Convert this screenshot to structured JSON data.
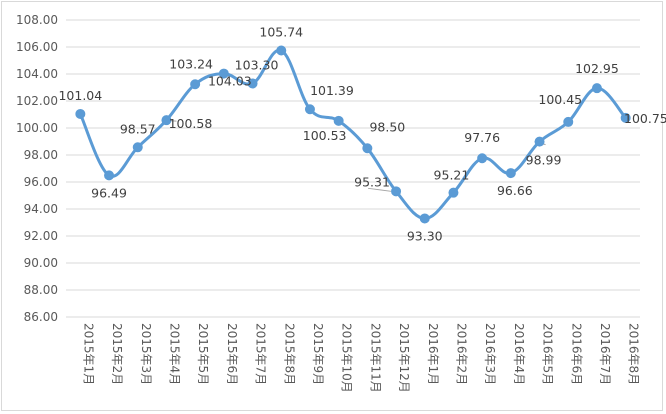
{
  "chart_data": {
    "type": "line",
    "title": "",
    "xlabel": "",
    "ylabel": "",
    "ylim": [
      86,
      108
    ],
    "ystep": 2,
    "ytick_labels": [
      "86.00",
      "88.00",
      "90.00",
      "92.00",
      "94.00",
      "96.00",
      "98.00",
      "100.00",
      "102.00",
      "104.00",
      "106.00",
      "108.00"
    ],
    "smooth": true,
    "grid": true,
    "legend": "none",
    "line_color": "#5b9bd5",
    "categories": [
      "2015年1月",
      "2015年2月",
      "2015年3月",
      "2015年4月",
      "2015年5月",
      "2015年6月",
      "2015年7月",
      "2015年8月",
      "2015年9月",
      "2015年10月",
      "2015年11月",
      "2015年12月",
      "2016年1月",
      "2016年2月",
      "2016年3月",
      "2016年4月",
      "2016年5月",
      "2016年6月",
      "2016年7月",
      "2016年8月"
    ],
    "series": [
      {
        "values": [
          101.04,
          96.49,
          98.57,
          100.58,
          103.24,
          104.03,
          103.3,
          105.74,
          101.39,
          100.53,
          98.5,
          95.31,
          93.3,
          95.21,
          97.76,
          96.66,
          98.99,
          100.45,
          102.95,
          100.75
        ],
        "labels": [
          "101.04",
          "96.49",
          "98.57",
          "100.58",
          "103.24",
          "104.03",
          "103.30",
          "105.74",
          "101.39",
          "100.53",
          "98.50",
          "95.31",
          "93.30",
          "95.21",
          "97.76",
          "96.66",
          "98.99",
          "100.45",
          "102.95",
          "100.75"
        ]
      }
    ]
  }
}
